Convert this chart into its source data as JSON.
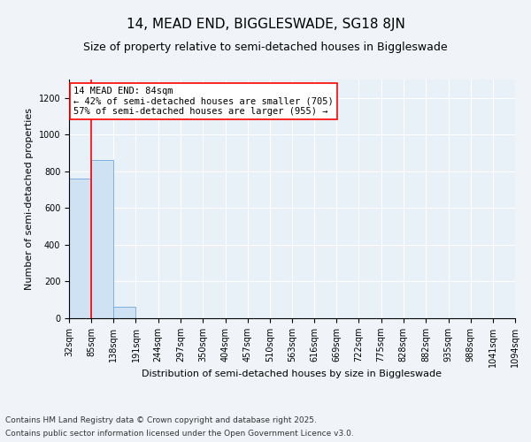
{
  "title1": "14, MEAD END, BIGGLESWADE, SG18 8JN",
  "title2": "Size of property relative to semi-detached houses in Biggleswade",
  "xlabel": "Distribution of semi-detached houses by size in Biggleswade",
  "ylabel": "Number of semi-detached properties",
  "bin_edges": [
    32,
    85,
    138,
    191,
    244,
    297,
    350,
    404,
    457,
    510,
    563,
    616,
    669,
    722,
    775,
    828,
    882,
    935,
    988,
    1041,
    1094
  ],
  "bar_heights": [
    760,
    860,
    65,
    0,
    0,
    0,
    0,
    0,
    0,
    0,
    0,
    0,
    0,
    0,
    0,
    0,
    0,
    0,
    0,
    0
  ],
  "bar_color": "#cfe2f3",
  "bar_edge_color": "#6fa8dc",
  "property_line_x": 84,
  "property_line_color": "red",
  "annotation_line1": "14 MEAD END: 84sqm",
  "annotation_line2": "← 42% of semi-detached houses are smaller (705)",
  "annotation_line3": "57% of semi-detached houses are larger (955) →",
  "annotation_box_color": "white",
  "annotation_box_edge_color": "red",
  "ylim": [
    0,
    1300
  ],
  "yticks": [
    0,
    200,
    400,
    600,
    800,
    1000,
    1200
  ],
  "footnote1": "Contains HM Land Registry data © Crown copyright and database right 2025.",
  "footnote2": "Contains public sector information licensed under the Open Government Licence v3.0.",
  "bg_color": "#f0f4f8",
  "plot_bg_color": "#e8f0f8",
  "title1_fontsize": 11,
  "title2_fontsize": 9,
  "axis_label_fontsize": 8,
  "tick_fontsize": 7,
  "annotation_fontsize": 7.5,
  "footnote_fontsize": 6.5
}
